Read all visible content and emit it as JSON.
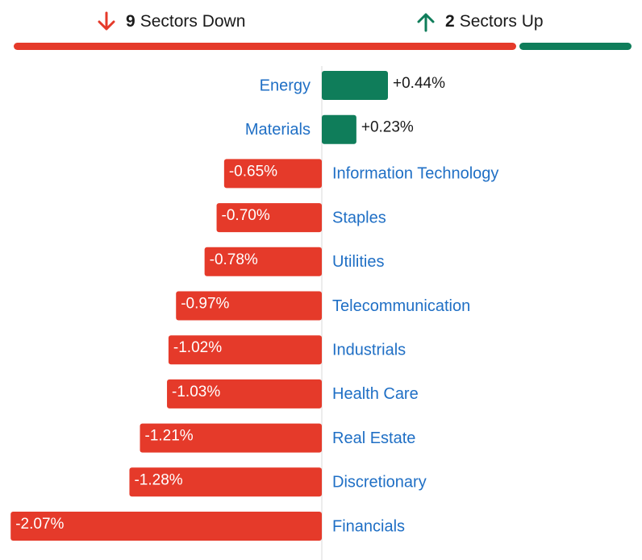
{
  "summary": {
    "down": {
      "count": "9",
      "label": "Sectors Down",
      "color": "#e53a2a",
      "icon": "arrow-down-icon"
    },
    "up": {
      "count": "2",
      "label": "Sectors Up",
      "color": "#0f7d5a",
      "icon": "arrow-up-icon"
    },
    "breadth": {
      "down_sectors": 9,
      "up_sectors": 2
    }
  },
  "chart_data": {
    "type": "bar",
    "orientation": "horizontal-diverging",
    "categories": [
      "Energy",
      "Materials",
      "Information Technology",
      "Staples",
      "Utilities",
      "Telecommunication",
      "Industrials",
      "Health Care",
      "Real Estate",
      "Discretionary",
      "Financials"
    ],
    "values": [
      0.44,
      0.23,
      -0.65,
      -0.7,
      -0.78,
      -0.97,
      -1.02,
      -1.03,
      -1.21,
      -1.28,
      -2.07
    ],
    "value_labels": [
      "+0.44%",
      "+0.23%",
      "-0.65%",
      "-0.70%",
      "-0.78%",
      "-0.97%",
      "-1.02%",
      "-1.03%",
      "-1.21%",
      "-1.28%",
      "-2.07%"
    ],
    "colors": {
      "positive": "#0f7d5a",
      "negative": "#e53a2a",
      "label": "#1f6fc5"
    },
    "xlim": [
      -2.07,
      0.44
    ],
    "grid": false,
    "legend": "none"
  }
}
